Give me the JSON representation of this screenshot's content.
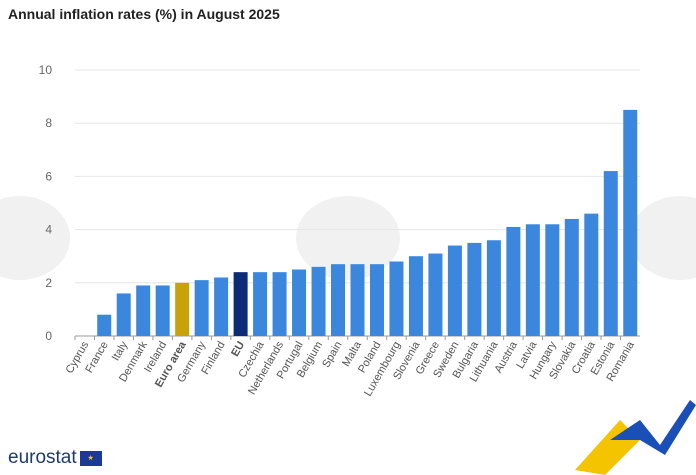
{
  "title": "Annual inflation rates (%) in August 2025",
  "logo": "eurostat",
  "colors": {
    "country": "#3a87dd",
    "euro_area": "#c9a20a",
    "eu": "#0d2c78",
    "grid": "#e6e6e6"
  },
  "chart_data": {
    "type": "bar",
    "title": "Annual inflation rates (%) in August 2025",
    "xlabel": "",
    "ylabel": "",
    "ylim": [
      0,
      10
    ],
    "yticks": [
      0,
      2,
      4,
      6,
      8,
      10
    ],
    "grid": true,
    "categories": [
      "Cyprus",
      "France",
      "Italy",
      "Denmark",
      "Ireland",
      "Euro area",
      "Germany",
      "Finland",
      "EU",
      "Czechia",
      "Netherlands",
      "Portugal",
      "Belgium",
      "Spain",
      "Malta",
      "Poland",
      "Luxembourg",
      "Slovenia",
      "Greece",
      "Sweden",
      "Bulgaria",
      "Lithuania",
      "Austria",
      "Latvia",
      "Hungary",
      "Slovakia",
      "Croatia",
      "Estonia",
      "Romania"
    ],
    "values": [
      0,
      0.8,
      1.6,
      1.9,
      1.9,
      2.0,
      2.1,
      2.2,
      2.4,
      2.4,
      2.4,
      2.5,
      2.6,
      2.7,
      2.7,
      2.7,
      2.8,
      3.0,
      3.1,
      3.4,
      3.5,
      3.6,
      4.1,
      4.2,
      4.2,
      4.4,
      4.6,
      6.2,
      8.5
    ],
    "highlight": {
      "Euro area": "euro_area",
      "EU": "eu"
    }
  }
}
